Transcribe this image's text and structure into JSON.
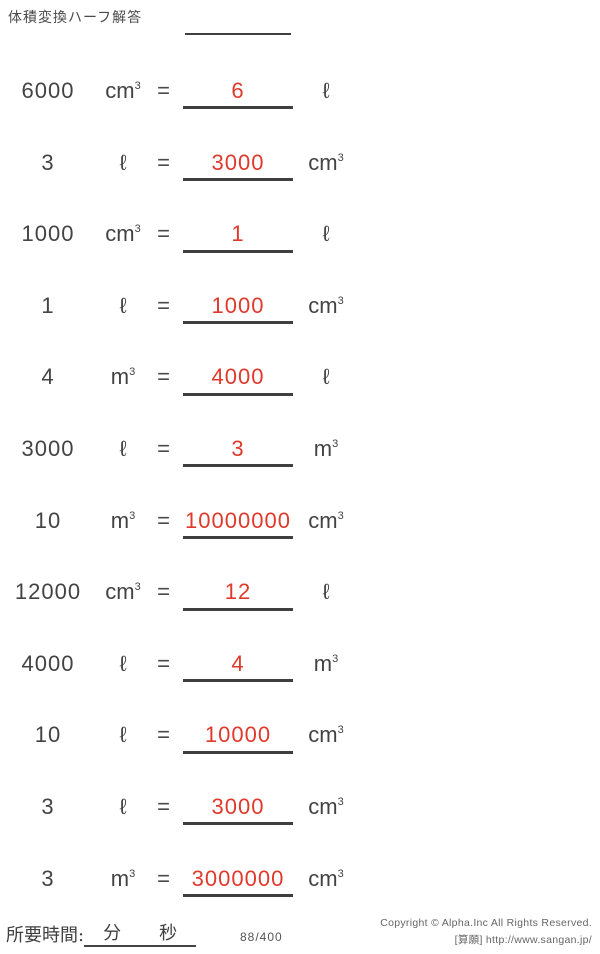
{
  "page": {
    "title": "体積変換ハーフ解答"
  },
  "labels": {
    "equals": "="
  },
  "rows": [
    {
      "value": "6000",
      "from_unit": "cm",
      "from_exp": "3",
      "answer": "6",
      "to_unit": "ℓ",
      "to_exp": ""
    },
    {
      "value": "3",
      "from_unit": "ℓ",
      "from_exp": "",
      "answer": "3000",
      "to_unit": "cm",
      "to_exp": "3"
    },
    {
      "value": "1000",
      "from_unit": "cm",
      "from_exp": "3",
      "answer": "1",
      "to_unit": "ℓ",
      "to_exp": ""
    },
    {
      "value": "1",
      "from_unit": "ℓ",
      "from_exp": "",
      "answer": "1000",
      "to_unit": "cm",
      "to_exp": "3"
    },
    {
      "value": "4",
      "from_unit": "m",
      "from_exp": "3",
      "answer": "4000",
      "to_unit": "ℓ",
      "to_exp": ""
    },
    {
      "value": "3000",
      "from_unit": "ℓ",
      "from_exp": "",
      "answer": "3",
      "to_unit": "m",
      "to_exp": "3"
    },
    {
      "value": "10",
      "from_unit": "m",
      "from_exp": "3",
      "answer": "10000000",
      "to_unit": "cm",
      "to_exp": "3"
    },
    {
      "value": "12000",
      "from_unit": "cm",
      "from_exp": "3",
      "answer": "12",
      "to_unit": "ℓ",
      "to_exp": ""
    },
    {
      "value": "4000",
      "from_unit": "ℓ",
      "from_exp": "",
      "answer": "4",
      "to_unit": "m",
      "to_exp": "3"
    },
    {
      "value": "10",
      "from_unit": "ℓ",
      "from_exp": "",
      "answer": "10000",
      "to_unit": "cm",
      "to_exp": "3"
    },
    {
      "value": "3",
      "from_unit": "ℓ",
      "from_exp": "",
      "answer": "3000",
      "to_unit": "cm",
      "to_exp": "3"
    },
    {
      "value": "3",
      "from_unit": "m",
      "from_exp": "3",
      "answer": "3000000",
      "to_unit": "cm",
      "to_exp": "3"
    }
  ],
  "footer": {
    "time_label": "所要時間:",
    "minutes_label": "分",
    "seconds_label": "秒",
    "progress": "88/400",
    "copyright_line1": "Copyright © Alpha.Inc All Rights Reserved.",
    "copyright_line2": "[算願] http://www.sangan.jp/"
  },
  "colors": {
    "text": "#434343",
    "answer_red": "#e0392c",
    "line": "#3f3f3f"
  }
}
